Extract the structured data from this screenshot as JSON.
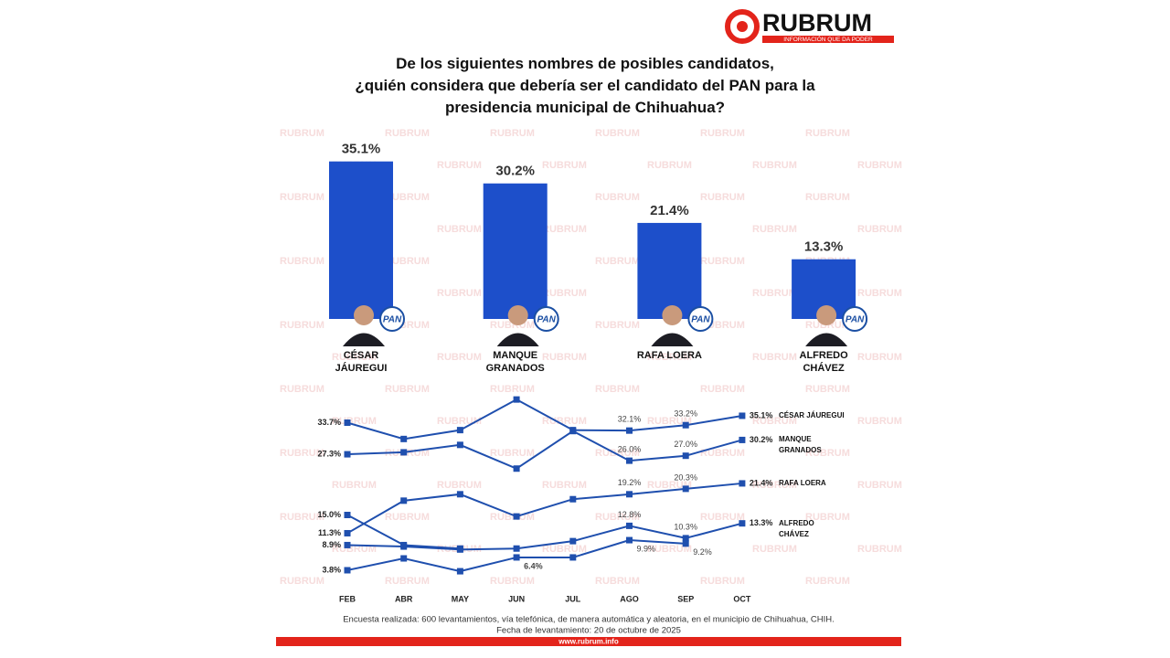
{
  "logo": {
    "name": "RUBRUM",
    "tagline": "INFORMACIÓN QUE DA PODER"
  },
  "watermark": "RUBRUM",
  "chart_data": [
    {
      "type": "bar",
      "title": [
        "De los siguientes nombres de posibles candidatos,",
        "¿quién considera que debería ser el candidato del PAN para la",
        "presidencia municipal de Chihuahua?"
      ],
      "categories": [
        "CÉSAR JÁUREGUI",
        "MANQUE GRANADOS",
        "RAFA LOERA",
        "ALFREDO CHÁVEZ"
      ],
      "values": [
        35.1,
        30.2,
        21.4,
        13.3
      ],
      "value_labels": [
        "35.1%",
        "30.2%",
        "21.4%",
        "13.3%"
      ],
      "color": "#1d4fca",
      "badge": "PAN"
    },
    {
      "type": "line",
      "categories": [
        "FEB",
        "ABR",
        "MAY",
        "JUN",
        "JUL",
        "AGO",
        "SEP",
        "OCT"
      ],
      "series": [
        {
          "name": "CÉSAR JÁUREGUI",
          "color": "#1f4fae",
          "values": [
            33.7,
            30.4,
            32.2,
            38.4,
            32.2,
            32.1,
            33.2,
            35.1
          ],
          "value_labels": [
            "33.7%",
            null,
            null,
            null,
            null,
            "32.1%",
            "33.2%",
            "35.1%"
          ]
        },
        {
          "name": "MANQUE GRANADOS",
          "color": "#1f4fae",
          "values": [
            27.3,
            27.7,
            29.2,
            24.4,
            32.0,
            26.0,
            27.0,
            30.2
          ],
          "value_labels": [
            "27.3%",
            null,
            null,
            null,
            null,
            "26.0%",
            "27.0%",
            "30.2%"
          ]
        },
        {
          "name": "RAFA LOERA",
          "color": "#1f4fae",
          "values": [
            11.3,
            17.9,
            19.2,
            14.7,
            18.2,
            19.2,
            20.3,
            21.4
          ],
          "value_labels": [
            "11.3%",
            null,
            null,
            null,
            null,
            "19.2%",
            "20.3%",
            "21.4%"
          ]
        },
        {
          "name": "ALFREDO CHÁVEZ",
          "color": "#1f4fae",
          "values": [
            8.9,
            8.6,
            8.0,
            8.2,
            9.7,
            12.8,
            10.3,
            13.3
          ],
          "value_labels": [
            "8.9%",
            null,
            null,
            null,
            null,
            "12.8%",
            "10.3%",
            "13.3%"
          ]
        },
        {
          "color": "#1f4fae",
          "values": [
            15.0,
            8.9,
            8.2,
            null,
            null,
            null,
            null,
            null
          ],
          "value_labels": [
            "15.0%",
            null,
            null,
            null,
            null,
            null,
            null,
            null
          ]
        },
        {
          "color": "#1f4fae",
          "values": [
            3.8,
            6.2,
            3.6,
            6.4,
            6.4,
            9.9,
            9.2,
            null
          ],
          "value_labels": [
            "3.8%",
            null,
            null,
            "6.4%",
            null,
            "9.9%",
            "9.2%",
            null
          ]
        }
      ]
    }
  ],
  "footer": {
    "note": "Encuesta realizada: 600 levantamientos, vía telefónica, de manera automática y aleatoria, en el municipio de Chihuahua, CHIH.",
    "date": "Fecha de levantamiento: 20 de octubre de 2025",
    "url": "www.rubrum.info"
  }
}
